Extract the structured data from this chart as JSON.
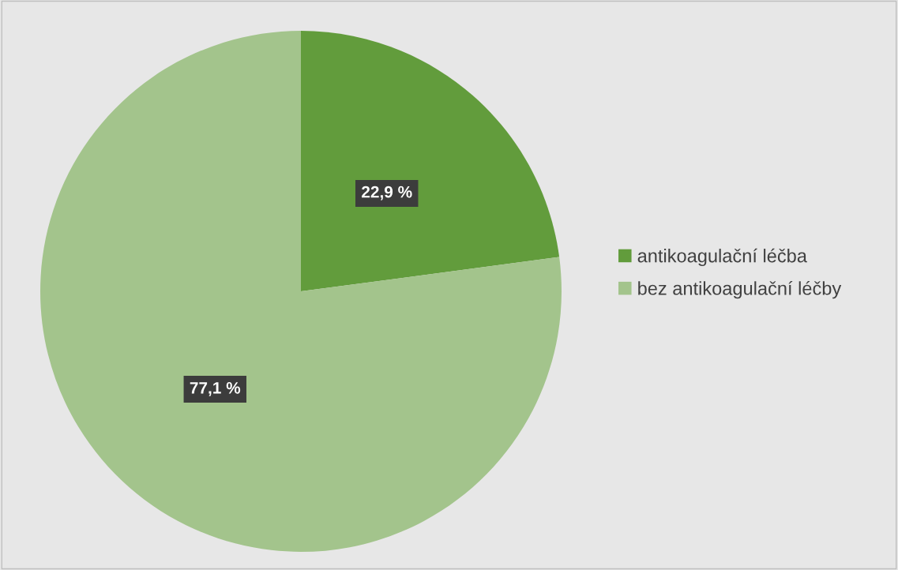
{
  "chart_data": {
    "type": "pie",
    "categories": [
      "antikoagulační léčba",
      "bez antikoagulační léčby"
    ],
    "values": [
      22.9,
      77.1
    ],
    "colors": [
      "#629c3c",
      "#a3c48c"
    ],
    "value_labels": [
      "22,9 %",
      "77,1 %"
    ],
    "legend": "right"
  }
}
